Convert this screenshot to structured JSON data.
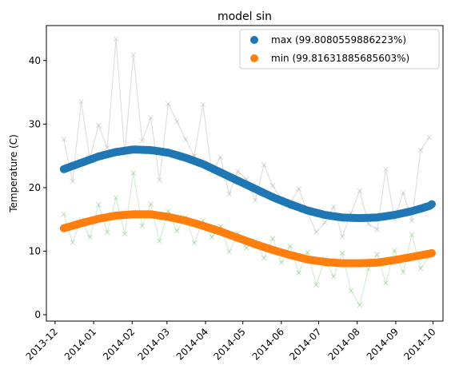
{
  "chart_data": {
    "type": "scatter",
    "title": "model sin",
    "xlabel": "",
    "ylabel": "Temperature (C)",
    "x_range": [
      "2013-11-24",
      "2014-10-09"
    ],
    "ylim": [
      -1,
      45.5
    ],
    "x_ticks": [
      "2013-12",
      "2014-01",
      "2014-02",
      "2014-03",
      "2014-04",
      "2014-05",
      "2014-06",
      "2014-07",
      "2014-08",
      "2014-09",
      "2014-10"
    ],
    "y_ticks": [
      0,
      10,
      20,
      30,
      40
    ],
    "grid": false,
    "legend_position": "top-right",
    "fit_series": [
      {
        "name": "max (99.8080559886223%)",
        "color": "#1f77b4",
        "x": [
          "2013-12-08",
          "2013-12-22",
          "2014-01-05",
          "2014-01-19",
          "2014-02-02",
          "2014-02-16",
          "2014-03-02",
          "2014-03-16",
          "2014-03-30",
          "2014-04-13",
          "2014-04-27",
          "2014-05-11",
          "2014-05-25",
          "2014-06-08",
          "2014-06-22",
          "2014-07-06",
          "2014-07-20",
          "2014-08-03",
          "2014-08-17",
          "2014-08-31",
          "2014-09-14",
          "2014-09-28",
          "2014-09-30"
        ],
        "y": [
          22.9,
          23.9,
          24.9,
          25.6,
          26.0,
          25.9,
          25.5,
          24.7,
          23.7,
          22.4,
          21.1,
          19.8,
          18.5,
          17.4,
          16.4,
          15.7,
          15.3,
          15.2,
          15.3,
          15.7,
          16.3,
          17.1,
          17.4
        ]
      },
      {
        "name": "min (99.81631885685603%)",
        "color": "#ff7f0e",
        "x": [
          "2013-12-08",
          "2013-12-22",
          "2014-01-05",
          "2014-01-19",
          "2014-02-02",
          "2014-02-16",
          "2014-03-02",
          "2014-03-16",
          "2014-03-30",
          "2014-04-13",
          "2014-04-27",
          "2014-05-11",
          "2014-05-25",
          "2014-06-08",
          "2014-06-22",
          "2014-07-06",
          "2014-07-20",
          "2014-08-03",
          "2014-08-17",
          "2014-08-31",
          "2014-09-14",
          "2014-09-28",
          "2014-09-30"
        ],
        "y": [
          13.6,
          14.4,
          15.1,
          15.6,
          15.8,
          15.8,
          15.4,
          14.8,
          14.0,
          13.1,
          12.1,
          11.1,
          10.2,
          9.4,
          8.7,
          8.3,
          8.1,
          8.1,
          8.2,
          8.6,
          9.1,
          9.6,
          9.7
        ]
      }
    ],
    "observed_series": [
      {
        "name": "",
        "color": "#808080",
        "x": [
          "2013-12-08",
          "2013-12-15",
          "2013-12-22",
          "2013-12-29",
          "2014-01-05",
          "2014-01-12",
          "2014-01-19",
          "2014-01-26",
          "2014-02-02",
          "2014-02-09",
          "2014-02-16",
          "2014-02-23",
          "2014-03-02",
          "2014-03-09",
          "2014-03-16",
          "2014-03-23",
          "2014-03-30",
          "2014-04-06",
          "2014-04-13",
          "2014-04-20",
          "2014-04-27",
          "2014-05-04",
          "2014-05-11",
          "2014-05-18",
          "2014-05-25",
          "2014-06-01",
          "2014-06-08",
          "2014-06-15",
          "2014-06-22",
          "2014-06-29",
          "2014-07-06",
          "2014-07-13",
          "2014-07-20",
          "2014-07-27",
          "2014-08-03",
          "2014-08-10",
          "2014-08-17",
          "2014-08-24",
          "2014-08-31",
          "2014-09-07",
          "2014-09-14",
          "2014-09-21",
          "2014-09-28"
        ],
        "y": [
          27.6,
          21.0,
          33.5,
          24.6,
          29.8,
          26.3,
          43.4,
          25.3,
          40.9,
          27.4,
          31.0,
          21.2,
          33.2,
          30.4,
          27.6,
          25.0,
          33.1,
          22.4,
          24.8,
          19.0,
          22.6,
          21.3,
          18.0,
          23.6,
          20.3,
          18.2,
          17.5,
          19.8,
          16.1,
          13.0,
          14.5,
          17.0,
          12.3,
          16.0,
          19.5,
          14.3,
          13.4,
          22.9,
          15.0,
          19.2,
          14.8,
          25.9,
          27.9
        ]
      },
      {
        "name": "",
        "color": "#2ca02c",
        "x": [
          "2013-12-08",
          "2013-12-15",
          "2013-12-22",
          "2013-12-29",
          "2014-01-05",
          "2014-01-12",
          "2014-01-19",
          "2014-01-26",
          "2014-02-02",
          "2014-02-09",
          "2014-02-16",
          "2014-02-23",
          "2014-03-02",
          "2014-03-09",
          "2014-03-16",
          "2014-03-23",
          "2014-03-30",
          "2014-04-06",
          "2014-04-13",
          "2014-04-20",
          "2014-04-27",
          "2014-05-04",
          "2014-05-11",
          "2014-05-18",
          "2014-05-25",
          "2014-06-01",
          "2014-06-08",
          "2014-06-15",
          "2014-06-22",
          "2014-06-29",
          "2014-07-06",
          "2014-07-13",
          "2014-07-20",
          "2014-07-27",
          "2014-08-03",
          "2014-08-10",
          "2014-08-17",
          "2014-08-24",
          "2014-08-31",
          "2014-09-07",
          "2014-09-14",
          "2014-09-21",
          "2014-09-28"
        ],
        "y": [
          15.8,
          11.4,
          14.9,
          12.2,
          17.3,
          13.0,
          18.4,
          12.7,
          22.3,
          14.0,
          17.4,
          11.6,
          16.3,
          13.2,
          15.3,
          11.3,
          14.8,
          12.2,
          13.9,
          9.9,
          12.8,
          10.5,
          11.6,
          8.9,
          12.0,
          8.2,
          10.8,
          6.6,
          9.8,
          4.7,
          8.8,
          6.0,
          9.7,
          3.8,
          1.5,
          7.2,
          9.5,
          5.0,
          10.1,
          6.7,
          12.6,
          7.3,
          9.2
        ]
      }
    ]
  }
}
